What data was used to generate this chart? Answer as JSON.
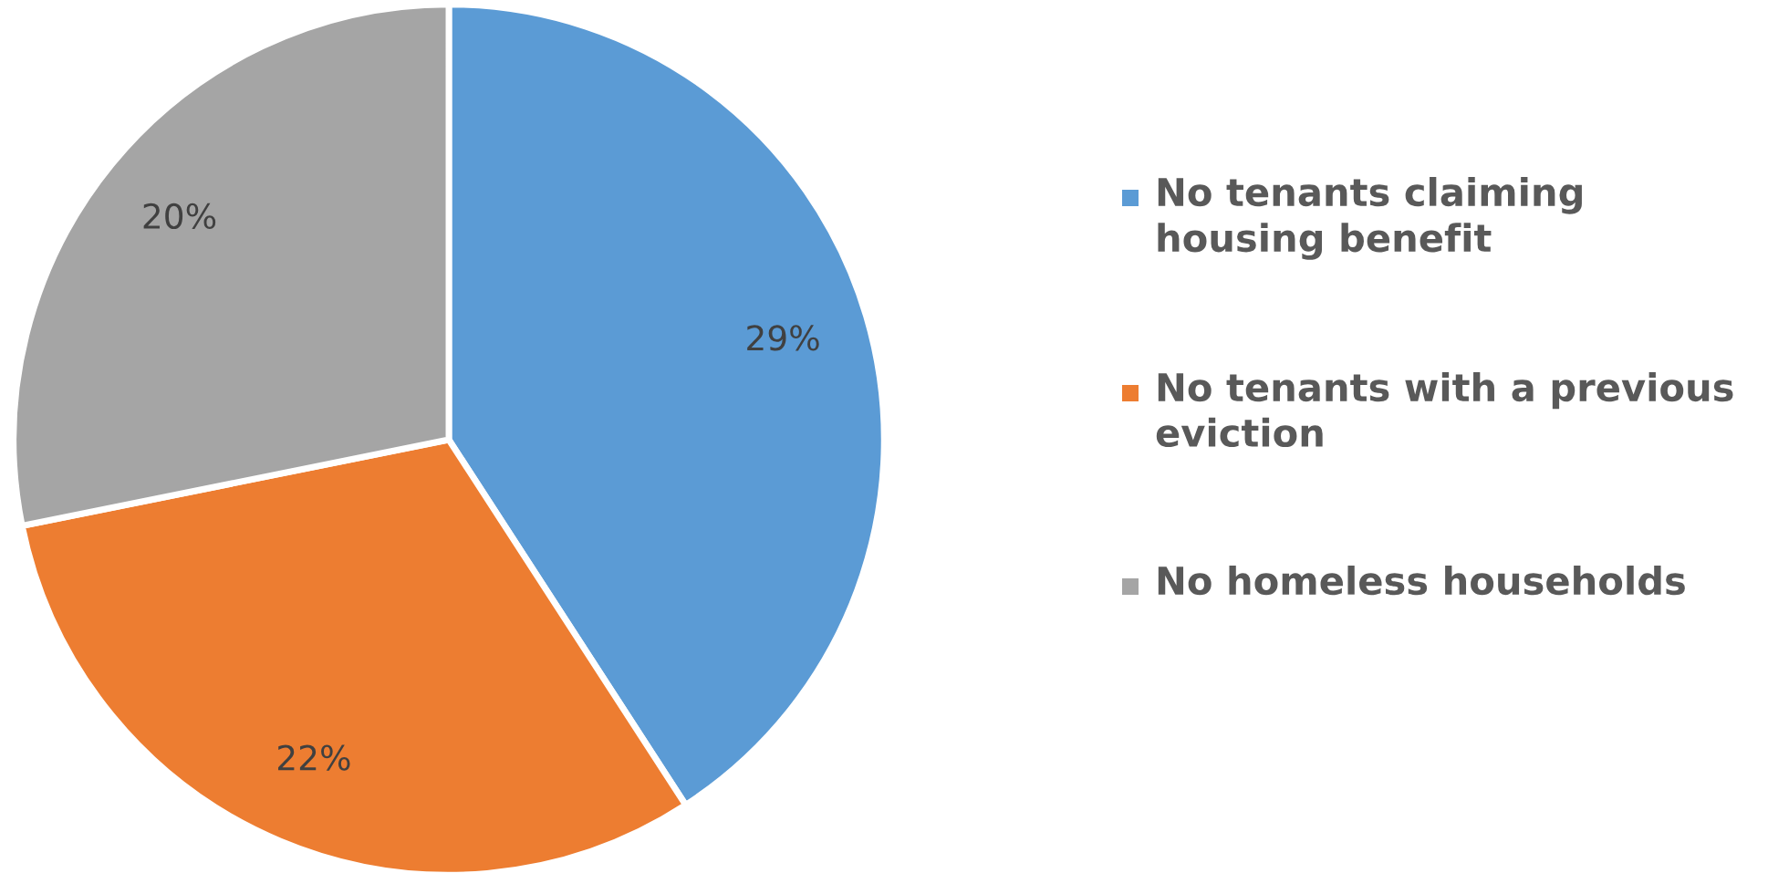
{
  "chart_data": {
    "type": "pie",
    "categories": [
      "No tenants claiming housing benefit",
      "No tenants with a previous eviction",
      "No homeless households"
    ],
    "values": [
      29,
      22,
      20
    ],
    "colors": [
      "#5b9bd5",
      "#ed7d31",
      "#a5a5a5"
    ],
    "value_labels": [
      "29%",
      "22%",
      "20%"
    ],
    "legend": "right"
  }
}
